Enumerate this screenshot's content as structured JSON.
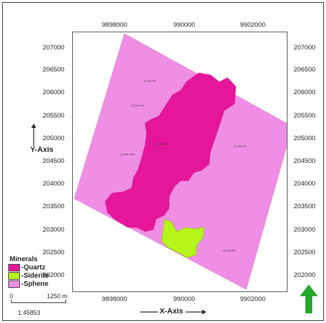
{
  "map": {
    "x_ticks": [
      "9898000",
      "990000",
      "9902000"
    ],
    "y_ticks": [
      "207000",
      "206500",
      "206000",
      "205500",
      "205000",
      "204500",
      "204000",
      "203500",
      "203000",
      "202500",
      "202000"
    ],
    "x_axis_title": "X-Axis",
    "y_axis_title": "Y-Axis",
    "wells": [
      "OW-W1",
      "OW-919",
      "OW-901",
      "OW-912B",
      "OW-919",
      "OW-909"
    ],
    "colors": {
      "quartz": "#e6169a",
      "siderite": "#b6f51a",
      "sphene": "#f08ee6",
      "north_arrow": "#22a82a"
    }
  },
  "legend": {
    "title": "Minerals",
    "items": [
      {
        "label": "Quartz",
        "color": "#e6169a"
      },
      {
        "label": "Siderite",
        "color": "#b6f51a"
      },
      {
        "label": "Sphene",
        "color": "#f08ee6"
      }
    ]
  },
  "scale": {
    "start": "0",
    "end": "1250 m",
    "ratio": "1:45853"
  },
  "north_arrow_icon": "north-arrow-icon"
}
